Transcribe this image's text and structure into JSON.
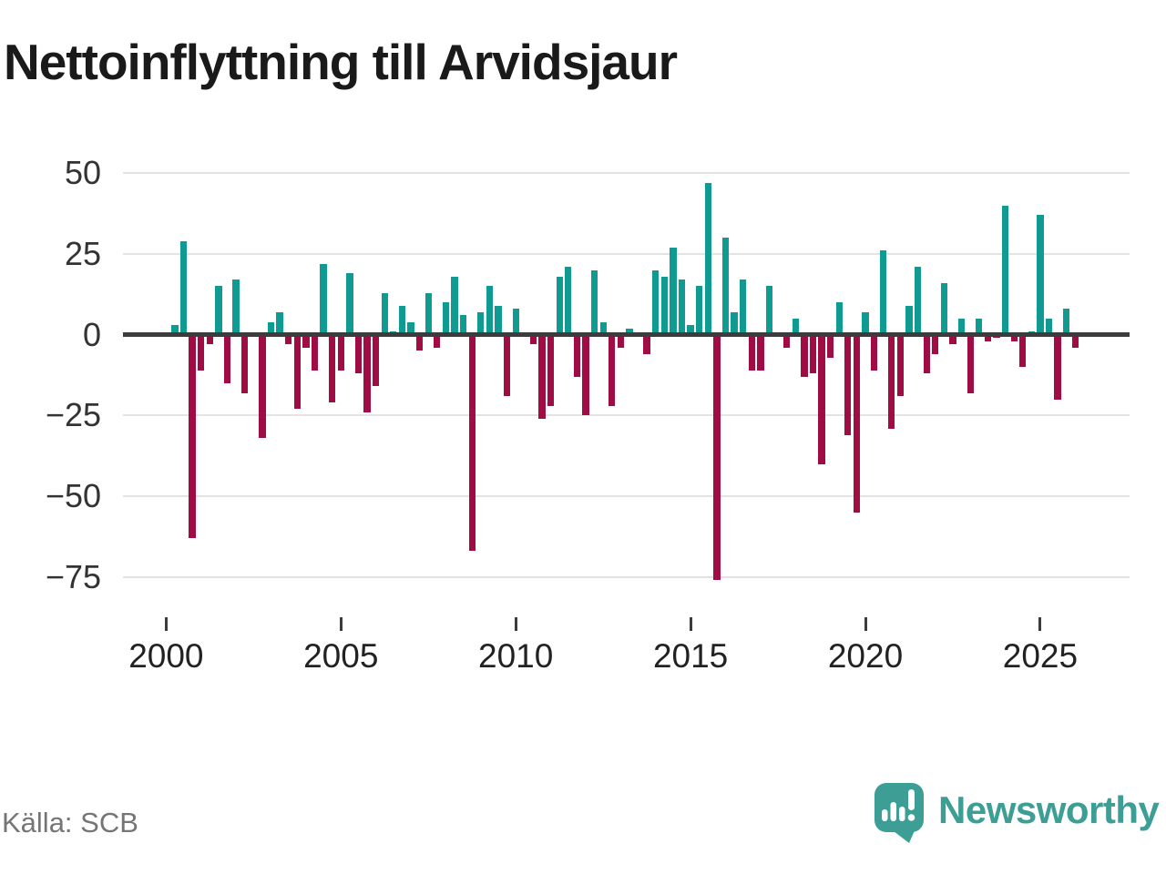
{
  "title": "Nettoinflyttning till Arvidsjaur",
  "source": "Källa: SCB",
  "logo": {
    "text": "Newsworthy"
  },
  "chart_data": {
    "type": "bar",
    "title": "Nettoinflyttning till Arvidsjaur",
    "frequency": "quarterly",
    "x_start": "2000 Q1",
    "x_end": "2026 Q1",
    "ylim": [
      -85,
      56
    ],
    "grid": "horizontal",
    "values": [
      0,
      3,
      29,
      -63,
      -11,
      -3,
      15,
      -15,
      17,
      -18,
      0,
      -32,
      4,
      7,
      -3,
      -23,
      -4,
      -11,
      22,
      -21,
      -11,
      19,
      -12,
      -24,
      -16,
      13,
      1,
      9,
      4,
      -5,
      13,
      -4,
      10,
      18,
      6,
      -67,
      7,
      15,
      9,
      -19,
      8,
      0,
      -3,
      -26,
      -22,
      18,
      21,
      -13,
      -25,
      20,
      4,
      -22,
      -4,
      2,
      0,
      -6,
      20,
      18,
      27,
      17,
      3,
      15,
      47,
      -76,
      30,
      7,
      17,
      -11,
      -11,
      15,
      0,
      -4,
      5,
      -13,
      -12,
      -40,
      -7,
      10,
      -31,
      -55,
      7,
      -11,
      26,
      -29,
      -19,
      9,
      21,
      -12,
      -6,
      16,
      -3,
      5,
      -18,
      5,
      -2,
      -1,
      40,
      -2,
      -10,
      1,
      37,
      5,
      -20,
      8,
      -4
    ],
    "y_ticks": [
      {
        "value": 50,
        "label": "50"
      },
      {
        "value": 25,
        "label": "25"
      },
      {
        "value": 0,
        "label": "0"
      },
      {
        "value": -25,
        "label": "−25"
      },
      {
        "value": -50,
        "label": "−50"
      },
      {
        "value": -75,
        "label": "−75"
      }
    ],
    "x_ticks": [
      {
        "label": "2000",
        "quarter_index": 0
      },
      {
        "label": "2005",
        "quarter_index": 20
      },
      {
        "label": "2010",
        "quarter_index": 40
      },
      {
        "label": "2015",
        "quarter_index": 60
      },
      {
        "label": "2020",
        "quarter_index": 80
      },
      {
        "label": "2025",
        "quarter_index": 100
      }
    ],
    "colors": {
      "positive": "#0f9b92",
      "negative": "#a00d45",
      "zero_line": "#3c3c3c",
      "grid": "#e3e3e3",
      "logo_teal": "#3d9e96"
    }
  }
}
